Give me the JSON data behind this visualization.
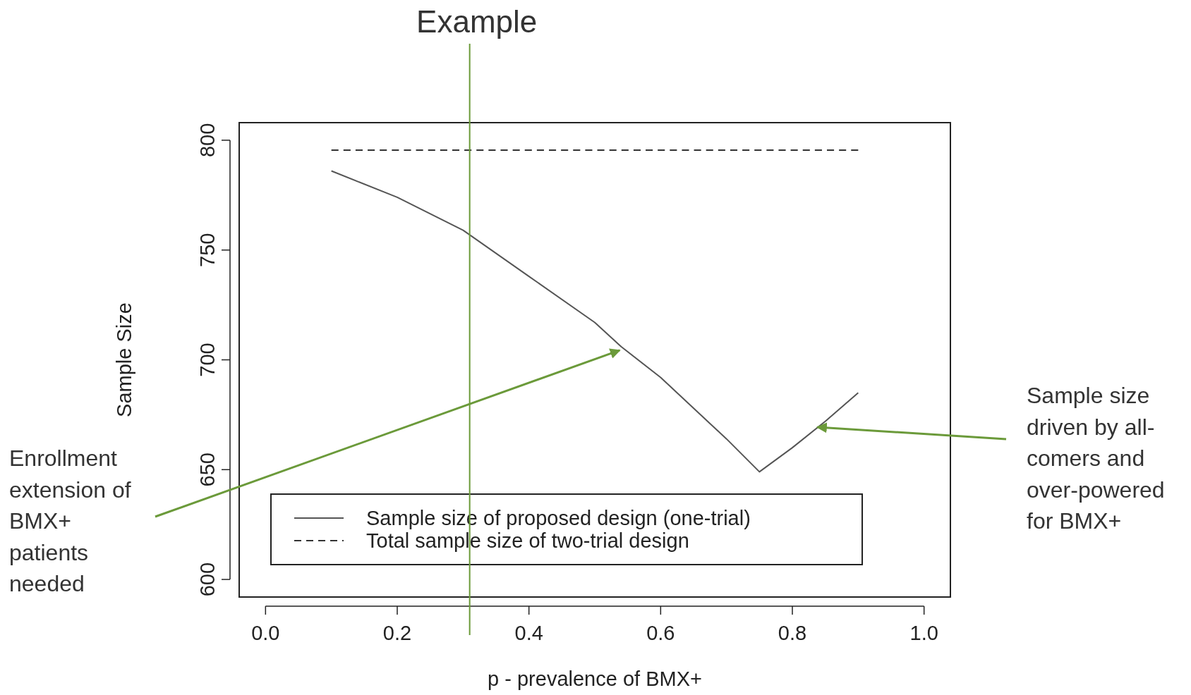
{
  "chart_data": {
    "type": "line",
    "xlabel": "p - prevalence of BMX+",
    "ylabel": "Sample Size",
    "xlim": [
      -0.04,
      1.04
    ],
    "ylim": [
      592,
      808
    ],
    "xticks": [
      {
        "value": 0,
        "label": "0.0"
      },
      0.2,
      0.4,
      0.6,
      0.8,
      {
        "value": 1,
        "label": "1.0"
      }
    ],
    "yticks": [
      600,
      650,
      700,
      750,
      800
    ],
    "series": [
      {
        "name": "Sample size of proposed design (one-trial)",
        "color": "#555555",
        "line_style": "solid",
        "x": [
          0.1,
          0.2,
          0.3,
          0.4,
          0.5,
          0.54,
          0.6,
          0.7,
          0.75,
          0.8,
          0.85,
          0.9
        ],
        "values": [
          786,
          774,
          759,
          738,
          717,
          706,
          692,
          664,
          649,
          660,
          672,
          685
        ]
      },
      {
        "name": "Total sample size of two-trial design",
        "color": "#333333",
        "line_style": "dashed",
        "x": [
          0.1,
          0.9
        ],
        "values": [
          795.5,
          795.5
        ]
      }
    ],
    "ref_lines": [
      {
        "axis": "x",
        "value": 0.31,
        "label": "Example",
        "color": "#6b9a3a"
      }
    ],
    "annotations": [
      {
        "text": "Enrollment extension of BMX+ patients needed",
        "x": 0.54,
        "y": 705
      },
      {
        "text": "Sample size driven by all-comers and over-powered for BMX+",
        "x": 0.84,
        "y": 670
      }
    ],
    "legend": "bottom",
    "grid": false
  }
}
